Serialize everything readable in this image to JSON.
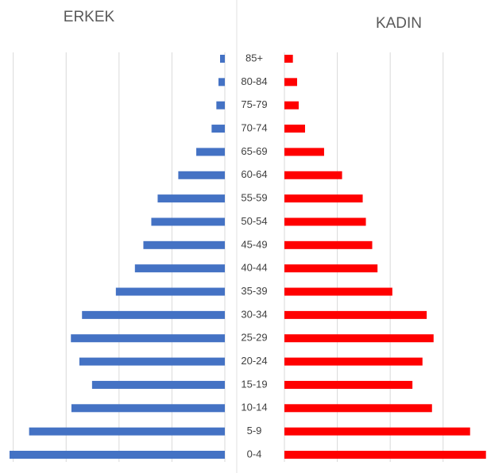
{
  "chart_data": {
    "type": "bar",
    "categories": [
      "85+",
      "80-84",
      "75-79",
      "70-74",
      "65-69",
      "60-64",
      "55-59",
      "50-54",
      "45-49",
      "40-44",
      "35-39",
      "30-34",
      "25-29",
      "20-24",
      "15-19",
      "10-14",
      "5-9",
      "0-4"
    ],
    "series": [
      {
        "name": "ERKEK",
        "color": "#4472c4",
        "values": [
          0.09,
          0.12,
          0.16,
          0.25,
          0.54,
          0.88,
          1.27,
          1.39,
          1.54,
          1.7,
          2.06,
          2.7,
          2.91,
          2.75,
          2.51,
          2.9,
          3.7,
          4.07
        ]
      },
      {
        "name": "KADIN",
        "color": "#ff0000",
        "values": [
          0.16,
          0.24,
          0.27,
          0.39,
          0.75,
          1.09,
          1.48,
          1.54,
          1.66,
          1.76,
          2.04,
          2.69,
          2.82,
          2.61,
          2.42,
          2.79,
          3.51,
          3.81
        ]
      }
    ],
    "xlim": [
      0,
      4.1
    ],
    "xticks": [
      0,
      1,
      2,
      3,
      4
    ],
    "grid": true
  }
}
